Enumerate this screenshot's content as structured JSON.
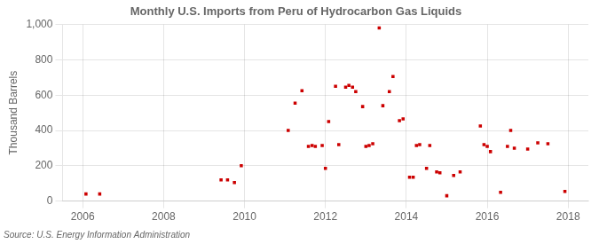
{
  "chart_data": {
    "type": "scatter",
    "title": "Monthly U.S. Imports from Peru of Hydrocarbon Gas Liquids",
    "ylabel": "Thousand Barrels",
    "annotations": [
      "Source: U.S. Energy Information Administration"
    ],
    "color": "#cc0000",
    "marker": "square",
    "grid": true,
    "xlim": [
      2005.5,
      2018.5
    ],
    "ylim": [
      0,
      1000
    ],
    "xticks": [
      2006,
      2008,
      2010,
      2012,
      2014,
      2016,
      2018
    ],
    "yticks": [
      0,
      200,
      400,
      600,
      800,
      {
        "value": 1000,
        "label": "1,000"
      }
    ],
    "x": [
      2006.08,
      2006.42,
      2009.42,
      2009.58,
      2009.75,
      2009.92,
      2011.08,
      2011.25,
      2011.42,
      2011.58,
      2011.67,
      2011.75,
      2011.92,
      2012.0,
      2012.08,
      2012.25,
      2012.33,
      2012.5,
      2012.58,
      2012.67,
      2012.75,
      2012.92,
      2013.0,
      2013.08,
      2013.17,
      2013.33,
      2013.42,
      2013.58,
      2013.67,
      2013.83,
      2013.92,
      2014.08,
      2014.17,
      2014.25,
      2014.33,
      2014.5,
      2014.58,
      2014.75,
      2014.83,
      2015.0,
      2015.17,
      2015.33,
      2015.83,
      2015.92,
      2016.0,
      2016.08,
      2016.33,
      2016.5,
      2016.58,
      2016.67,
      2017.0,
      2017.25,
      2017.5,
      2017.92
    ],
    "values": [
      40,
      40,
      120,
      120,
      105,
      200,
      400,
      555,
      625,
      310,
      315,
      310,
      315,
      185,
      450,
      650,
      320,
      645,
      655,
      645,
      620,
      535,
      310,
      315,
      325,
      980,
      540,
      620,
      705,
      455,
      465,
      135,
      135,
      315,
      320,
      185,
      315,
      165,
      160,
      30,
      145,
      165,
      425,
      320,
      310,
      280,
      50,
      310,
      400,
      300,
      295,
      330,
      325,
      55
    ]
  }
}
